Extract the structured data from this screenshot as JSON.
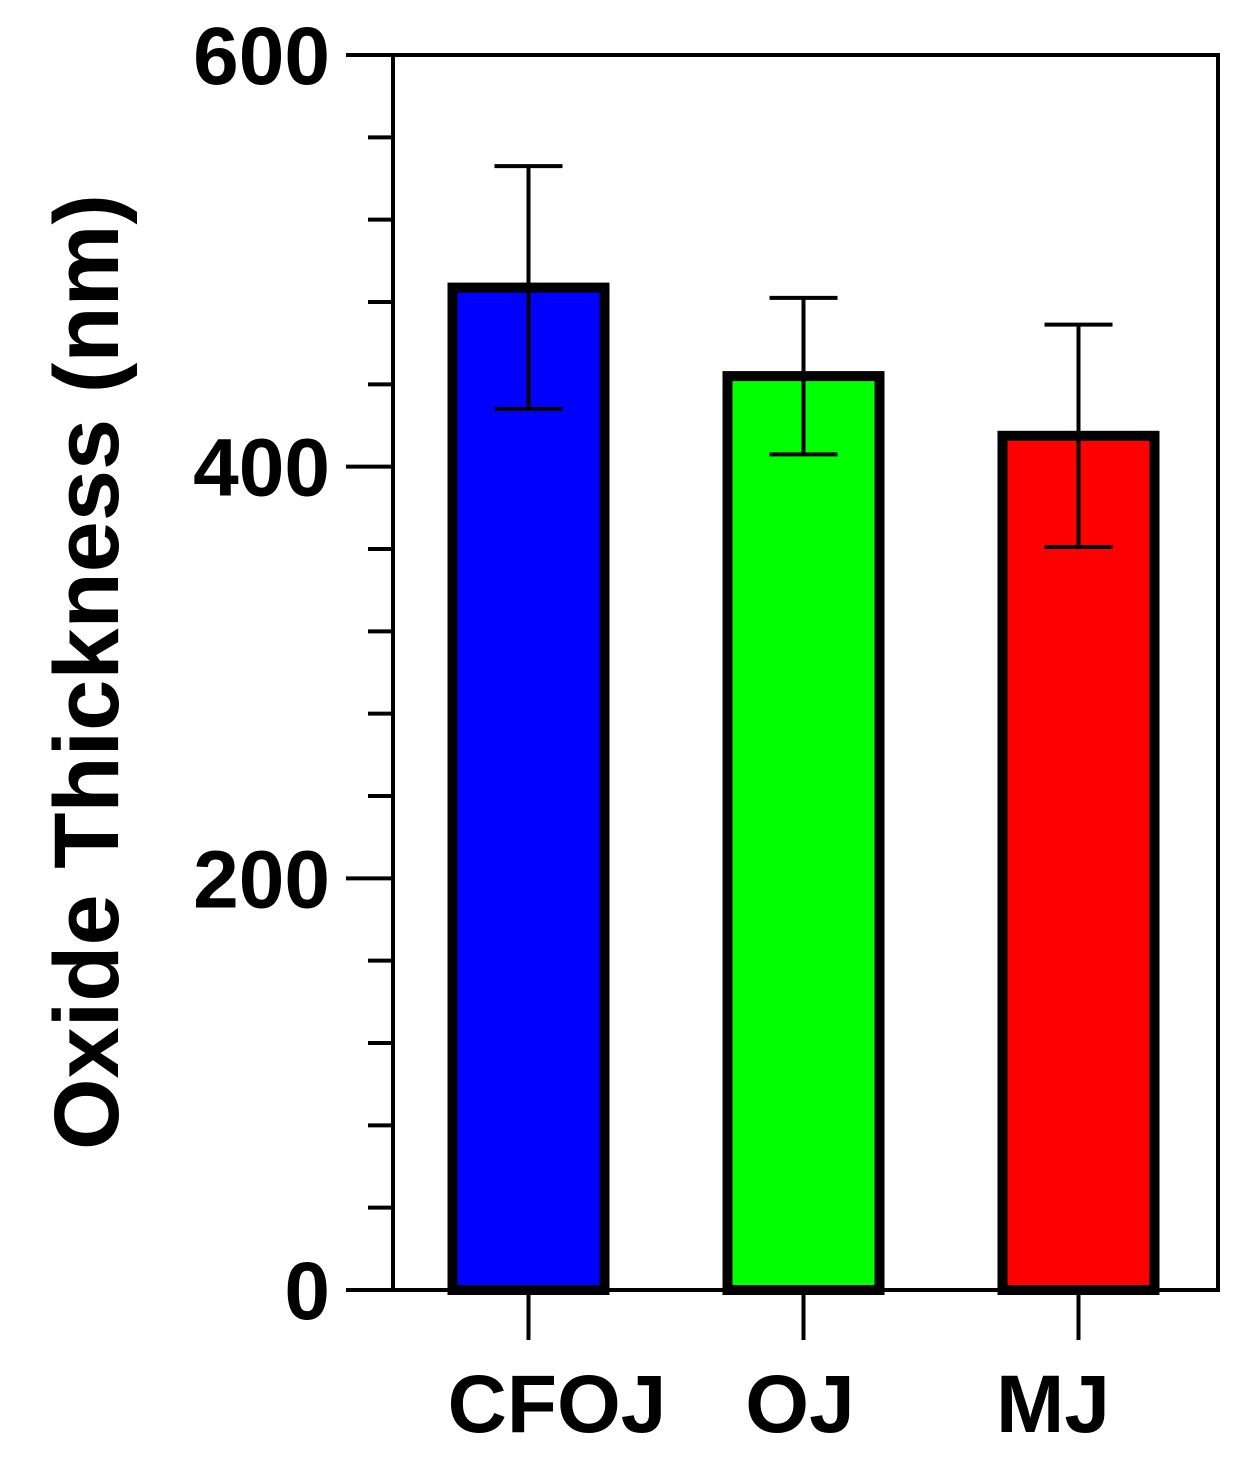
{
  "chart_data": {
    "type": "bar",
    "title": "",
    "xlabel": "",
    "ylabel": "Oxide Thickness (nm)",
    "categories": [
      "CFOJ",
      "OJ",
      "MJ"
    ],
    "values": [
      487,
      444,
      415
    ],
    "errors": [
      59,
      38,
      54
    ],
    "colors": [
      "#0000ff",
      "#00ff00",
      "#ff0000"
    ],
    "ylim": [
      0,
      600
    ],
    "yticks": [
      0,
      200,
      400,
      600
    ],
    "yticks_minor_step": 40,
    "grid": false,
    "legend": "none"
  }
}
